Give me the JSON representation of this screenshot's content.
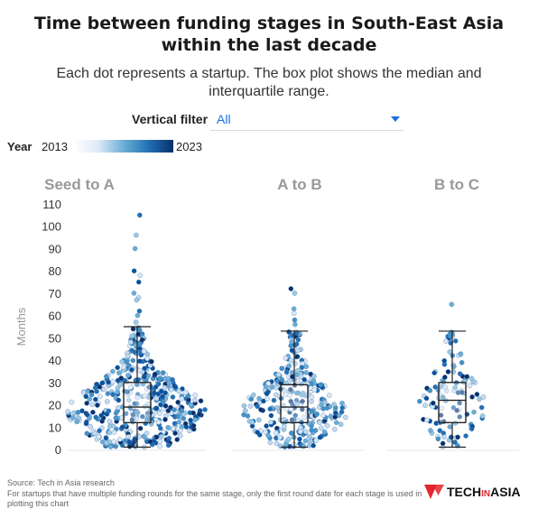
{
  "header": {
    "title_line1": "Time between funding stages in South-East Asia",
    "title_line2": "within the last decade",
    "subtitle_line1": "Each dot represents a startup. The box plot shows the median and",
    "subtitle_line2": "interquartile range."
  },
  "filter": {
    "label": "Vertical filter",
    "value": "All"
  },
  "year_legend": {
    "label": "Year",
    "min": "2013",
    "max": "2023"
  },
  "colors": {
    "light": "#dbe9f7",
    "mid": "#6baed6",
    "dark": "#08306b",
    "box": "#222222",
    "logo_red": "#e3262d"
  },
  "footer": {
    "source": "Source: Tech in Asia research",
    "note": "For startups that have multiple funding rounds for the same stage, only the first round date for each stage is used in plotting this chart"
  },
  "logo": {
    "text_left": "TECH",
    "text_mid": "IN",
    "text_right": "ASIA"
  },
  "chart_data": {
    "type": "box-swarm",
    "ylabel": "Months",
    "ylim": [
      0,
      110
    ],
    "yticks": [
      "0",
      "10",
      "20",
      "30",
      "40",
      "50",
      "60",
      "70",
      "80",
      "90",
      "100",
      "110"
    ],
    "panels": [
      {
        "name": "Seed to A",
        "box": {
          "min": 1,
          "q1": 12,
          "median": 19,
          "q3": 30,
          "max": 55
        },
        "outliers": [
          105,
          96,
          90,
          80,
          78,
          75,
          70,
          68,
          67,
          62,
          60,
          57
        ],
        "n": 480,
        "spread": 1.0
      },
      {
        "name": "A to B",
        "box": {
          "min": 1,
          "q1": 12,
          "median": 19,
          "q3": 29,
          "max": 53
        },
        "outliers": [
          72,
          70,
          63,
          61,
          58,
          56
        ],
        "n": 300,
        "spread": 0.75
      },
      {
        "name": "B to C",
        "box": {
          "min": 1,
          "q1": 12,
          "median": 22,
          "q3": 30,
          "max": 53
        },
        "outliers": [
          65
        ],
        "n": 110,
        "spread": 0.45
      }
    ]
  }
}
